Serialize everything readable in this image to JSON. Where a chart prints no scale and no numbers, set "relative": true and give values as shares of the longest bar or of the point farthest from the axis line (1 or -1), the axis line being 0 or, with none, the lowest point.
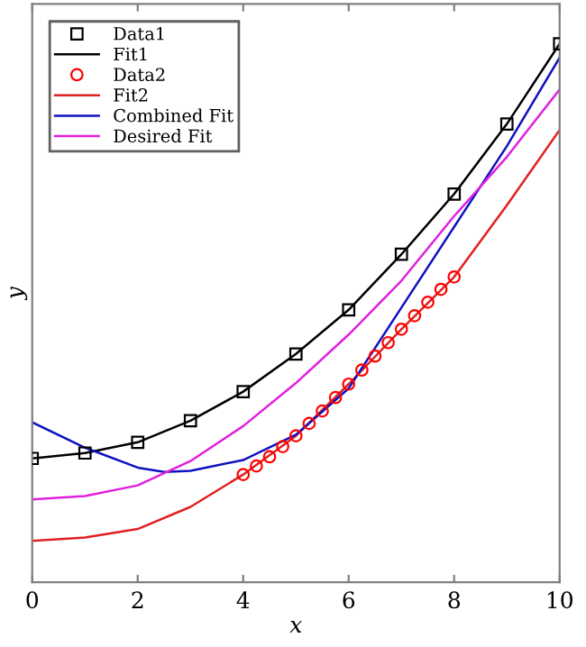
{
  "chart_data": {
    "type": "line",
    "xlabel": "x",
    "ylabel": "y",
    "relative": true,
    "xlim": [
      0,
      10
    ],
    "xticks": [
      0,
      2,
      4,
      6,
      8,
      10
    ],
    "tick_labels": "x",
    "legend": "top left",
    "grid": false,
    "series": [
      {
        "name": "Data1",
        "type": "scatter",
        "marker": "square",
        "color": "#000000",
        "x": [
          0,
          1,
          2,
          3,
          4,
          5,
          6,
          7,
          8,
          9,
          10
        ],
        "values": [
          0.23,
          0.24,
          0.26,
          0.3,
          0.354,
          0.424,
          0.506,
          0.609,
          0.721,
          0.851,
          1.0
        ]
      },
      {
        "name": "Fit1",
        "color": "#000000",
        "x": [
          0,
          1,
          2,
          3,
          4,
          5,
          6,
          7,
          8,
          9,
          10
        ],
        "values": [
          0.23,
          0.24,
          0.26,
          0.3,
          0.354,
          0.424,
          0.506,
          0.609,
          0.721,
          0.851,
          1.0
        ]
      },
      {
        "name": "Data2",
        "type": "scatter",
        "marker": "circle",
        "color": "#ff0000",
        "x": [
          4,
          4.25,
          4.5,
          4.75,
          5,
          5.25,
          5.5,
          5.75,
          6,
          6.25,
          6.5,
          6.75,
          7,
          7.25,
          7.5,
          7.75,
          8
        ],
        "values": [
          0.2,
          0.216,
          0.233,
          0.252,
          0.272,
          0.295,
          0.318,
          0.343,
          0.368,
          0.394,
          0.42,
          0.445,
          0.47,
          0.495,
          0.52,
          0.544,
          0.567
        ]
      },
      {
        "name": "Fit2",
        "color": "#e02020",
        "x": [
          0,
          1,
          2,
          3,
          4,
          5,
          6,
          7,
          8,
          9,
          10
        ],
        "values": [
          0.077,
          0.083,
          0.099,
          0.14,
          0.2,
          0.272,
          0.368,
          0.47,
          0.567,
          0.7,
          0.84
        ]
      },
      {
        "name": "Combined Fit",
        "color": "#1010c0",
        "x": [
          0,
          1,
          2,
          2.5,
          3,
          4,
          5,
          6,
          7,
          8,
          9,
          10
        ],
        "values": [
          0.297,
          0.25,
          0.213,
          0.205,
          0.207,
          0.227,
          0.274,
          0.36,
          0.51,
          0.66,
          0.81,
          0.974
        ]
      },
      {
        "name": "Desired Fit",
        "color": "#e020e0",
        "x": [
          0,
          1,
          2,
          3,
          4,
          5,
          6,
          7,
          8,
          9,
          10
        ],
        "values": [
          0.154,
          0.16,
          0.18,
          0.225,
          0.29,
          0.37,
          0.46,
          0.56,
          0.68,
          0.79,
          0.915
        ]
      }
    ]
  }
}
